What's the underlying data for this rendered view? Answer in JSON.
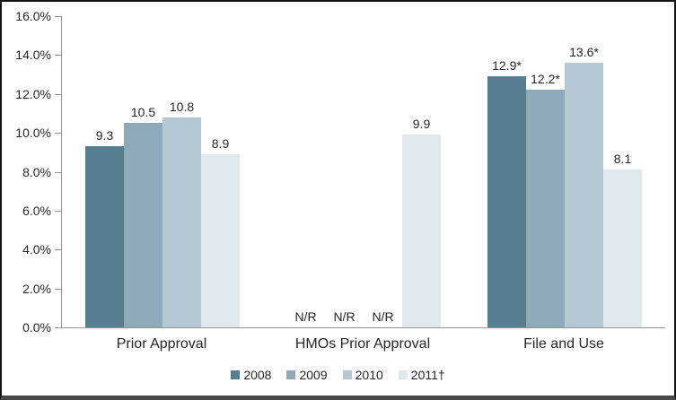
{
  "chart_data": {
    "type": "bar",
    "title": "",
    "categories": [
      "Prior Approval",
      "HMOs Prior Approval",
      "File and Use"
    ],
    "series": [
      {
        "name": "2008",
        "color": "#557E91",
        "values": [
          9.3,
          null,
          12.9
        ],
        "labels": [
          "9.3",
          "N/R",
          "12.9*"
        ]
      },
      {
        "name": "2009",
        "color": "#8EA9B8",
        "values": [
          10.5,
          null,
          12.2
        ],
        "labels": [
          "10.5",
          "N/R",
          "12.2*"
        ]
      },
      {
        "name": "2010",
        "color": "#B5C7D2",
        "values": [
          10.8,
          null,
          13.6
        ],
        "labels": [
          "10.8",
          "N/R",
          "13.6*"
        ]
      },
      {
        "name": "2011†",
        "color": "#DFE8EC",
        "values": [
          8.9,
          9.9,
          8.1
        ],
        "labels": [
          "8.9",
          "9.9",
          "8.1"
        ]
      }
    ],
    "not_reported_label": "N/R",
    "ylim": [
      0,
      16
    ],
    "ytick_step": 2,
    "yticks": [
      "0.0%",
      "2.0%",
      "4.0%",
      "6.0%",
      "8.0%",
      "10.0%",
      "12.0%",
      "14.0%",
      "16.0%"
    ],
    "grid": false,
    "legend_position": "bottom",
    "axis_color": "#949494",
    "text_color": "#262626"
  }
}
